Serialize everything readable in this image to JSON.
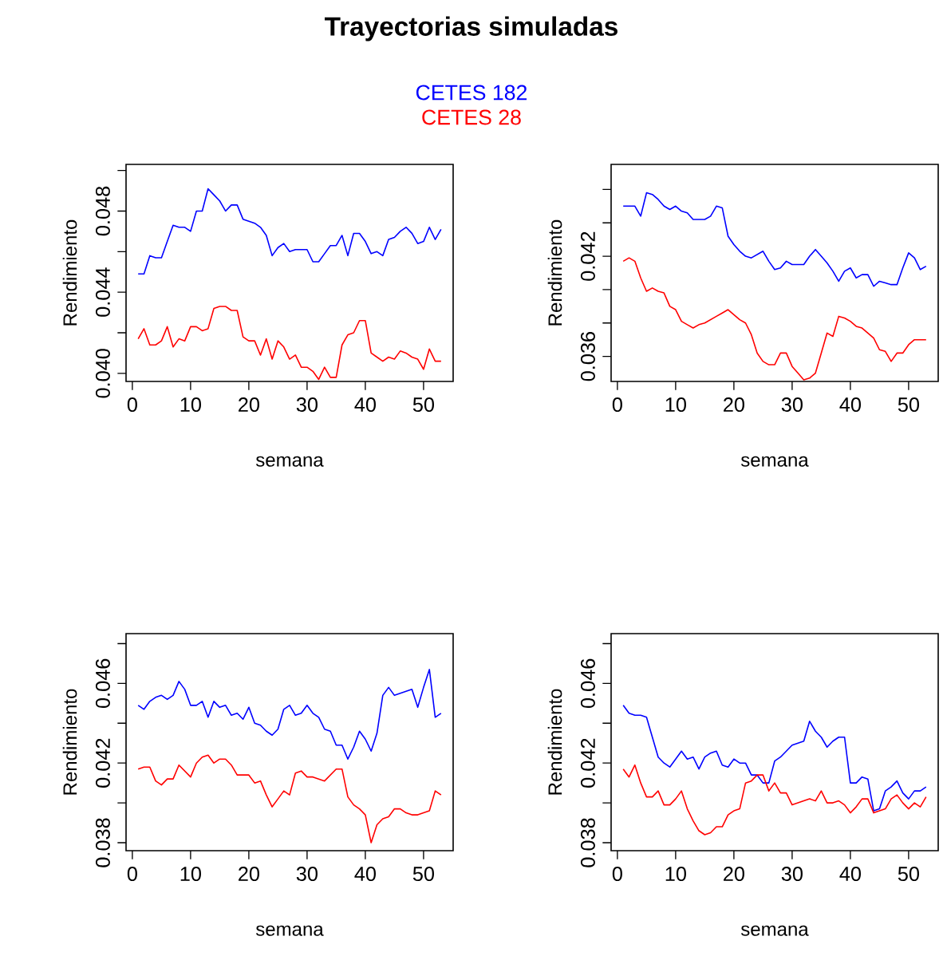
{
  "chart_data": [
    {
      "type": "line",
      "title": "Trayectorias simuladas",
      "legend": "top",
      "xlabel": "semana",
      "ylabel": "Rendimiento",
      "x": [
        1,
        2,
        3,
        4,
        5,
        6,
        7,
        8,
        9,
        10,
        11,
        12,
        13,
        14,
        15,
        16,
        17,
        18,
        19,
        20,
        21,
        22,
        23,
        24,
        25,
        26,
        27,
        28,
        29,
        30,
        31,
        32,
        33,
        34,
        35,
        36,
        37,
        38,
        39,
        40,
        41,
        42,
        43,
        44,
        45,
        46,
        47,
        48,
        49,
        50,
        51,
        52,
        53
      ],
      "xlim": [
        -1.08,
        55.08
      ],
      "xticks": [
        0,
        10,
        20,
        30,
        40,
        50
      ],
      "ylim": [
        0.0396,
        0.0503
      ],
      "yticks": [
        {
          "value": 0.04,
          "label": "0.040"
        },
        {
          "value": 0.042,
          "label": null
        },
        0.044,
        {
          "value": 0.046,
          "label": null
        },
        0.048,
        {
          "value": 0.05,
          "label": null
        }
      ],
      "series": [
        {
          "name": "CETES 182",
          "color": "#0000ff",
          "values": [
            0.0449,
            0.0449,
            0.0458,
            0.0457,
            0.0457,
            0.0465,
            0.0473,
            0.0472,
            0.0472,
            0.047,
            0.048,
            0.048,
            0.0491,
            0.0488,
            0.0485,
            0.048,
            0.0483,
            0.0483,
            0.0476,
            0.0475,
            0.0474,
            0.0472,
            0.0468,
            0.0458,
            0.0462,
            0.0464,
            0.046,
            0.0461,
            0.0461,
            0.0461,
            0.0455,
            0.0455,
            0.0459,
            0.0463,
            0.0463,
            0.0468,
            0.0458,
            0.0469,
            0.0469,
            0.0465,
            0.0459,
            0.046,
            0.0458,
            0.0466,
            0.0467,
            0.047,
            0.0472,
            0.0469,
            0.0464,
            0.0465,
            0.0472,
            0.0466,
            0.0471
          ]
        },
        {
          "name": "CETES 28",
          "color": "#ff0000",
          "values": [
            0.0417,
            0.0422,
            0.0414,
            0.0414,
            0.0416,
            0.0423,
            0.0413,
            0.0417,
            0.0416,
            0.0423,
            0.0423,
            0.0421,
            0.0422,
            0.0432,
            0.0433,
            0.0433,
            0.0431,
            0.0431,
            0.0418,
            0.0416,
            0.0416,
            0.0409,
            0.0417,
            0.0407,
            0.0416,
            0.0413,
            0.0407,
            0.0409,
            0.0403,
            0.0403,
            0.0401,
            0.0397,
            0.0403,
            0.0398,
            0.0398,
            0.0414,
            0.0419,
            0.042,
            0.0426,
            0.0426,
            0.041,
            0.0408,
            0.0406,
            0.0408,
            0.0407,
            0.0411,
            0.041,
            0.0408,
            0.0407,
            0.0402,
            0.0412,
            0.0406,
            0.0406
          ]
        }
      ]
    },
    {
      "type": "line",
      "xlabel": "semana",
      "ylabel": "Rendimiento",
      "x": [
        1,
        2,
        3,
        4,
        5,
        6,
        7,
        8,
        9,
        10,
        11,
        12,
        13,
        14,
        15,
        16,
        17,
        18,
        19,
        20,
        21,
        22,
        23,
        24,
        25,
        26,
        27,
        28,
        29,
        30,
        31,
        32,
        33,
        34,
        35,
        36,
        37,
        38,
        39,
        40,
        41,
        42,
        43,
        44,
        45,
        46,
        47,
        48,
        49,
        50,
        51,
        52,
        53
      ],
      "xlim": [
        -1.08,
        55.08
      ],
      "xticks": [
        0,
        10,
        20,
        30,
        40,
        50
      ],
      "ylim": [
        0.0345,
        0.0475
      ],
      "yticks": [
        0.036,
        {
          "value": 0.038,
          "label": null
        },
        {
          "value": 0.04,
          "label": null
        },
        0.042,
        {
          "value": 0.044,
          "label": null
        },
        {
          "value": 0.046,
          "label": null
        }
      ],
      "series": [
        {
          "color": "#0000ff",
          "values": [
            0.045,
            0.045,
            0.045,
            0.0444,
            0.0458,
            0.0457,
            0.0454,
            0.045,
            0.0448,
            0.045,
            0.0447,
            0.0446,
            0.0442,
            0.0442,
            0.0442,
            0.0444,
            0.045,
            0.0449,
            0.0432,
            0.0427,
            0.0423,
            0.042,
            0.0419,
            0.0421,
            0.0423,
            0.0417,
            0.0412,
            0.0413,
            0.0417,
            0.0415,
            0.0415,
            0.0415,
            0.042,
            0.0424,
            0.042,
            0.0416,
            0.0411,
            0.0405,
            0.0411,
            0.0413,
            0.0407,
            0.0409,
            0.0409,
            0.0402,
            0.0405,
            0.0404,
            0.0403,
            0.0403,
            0.0413,
            0.0422,
            0.0419,
            0.0412,
            0.0414
          ]
        },
        {
          "color": "#ff0000",
          "values": [
            0.0417,
            0.0419,
            0.0417,
            0.0407,
            0.0399,
            0.0401,
            0.0399,
            0.0398,
            0.039,
            0.0388,
            0.0381,
            0.0379,
            0.0377,
            0.0379,
            0.038,
            0.0382,
            0.0384,
            0.0386,
            0.0388,
            0.0385,
            0.0382,
            0.038,
            0.0373,
            0.0362,
            0.0357,
            0.0355,
            0.0355,
            0.0362,
            0.0362,
            0.0354,
            0.035,
            0.0346,
            0.0347,
            0.035,
            0.0362,
            0.0374,
            0.0372,
            0.0384,
            0.0383,
            0.0381,
            0.0378,
            0.0377,
            0.0374,
            0.0371,
            0.0364,
            0.0363,
            0.0357,
            0.0362,
            0.0362,
            0.0367,
            0.037,
            0.037,
            0.037
          ]
        }
      ]
    },
    {
      "type": "line",
      "xlabel": "semana",
      "ylabel": "Rendimiento",
      "x": [
        1,
        2,
        3,
        4,
        5,
        6,
        7,
        8,
        9,
        10,
        11,
        12,
        13,
        14,
        15,
        16,
        17,
        18,
        19,
        20,
        21,
        22,
        23,
        24,
        25,
        26,
        27,
        28,
        29,
        30,
        31,
        32,
        33,
        34,
        35,
        36,
        37,
        38,
        39,
        40,
        41,
        42,
        43,
        44,
        45,
        46,
        47,
        48,
        49,
        50,
        51,
        52,
        53
      ],
      "xlim": [
        -1.08,
        55.08
      ],
      "xticks": [
        0,
        10,
        20,
        30,
        40,
        50
      ],
      "ylim": [
        0.0376,
        0.0485
      ],
      "yticks": [
        0.038,
        {
          "value": 0.04,
          "label": null
        },
        0.042,
        {
          "value": 0.044,
          "label": null
        },
        0.046,
        {
          "value": 0.048,
          "label": null
        }
      ],
      "series": [
        {
          "color": "#0000ff",
          "values": [
            0.0449,
            0.0447,
            0.0451,
            0.0453,
            0.0454,
            0.0452,
            0.0454,
            0.0461,
            0.0457,
            0.0449,
            0.0449,
            0.0451,
            0.0443,
            0.0451,
            0.0448,
            0.0449,
            0.0444,
            0.0445,
            0.0442,
            0.0448,
            0.044,
            0.0439,
            0.0436,
            0.0434,
            0.0437,
            0.0447,
            0.0449,
            0.0444,
            0.0445,
            0.0449,
            0.0445,
            0.0443,
            0.0437,
            0.0436,
            0.0429,
            0.0429,
            0.0422,
            0.0428,
            0.0436,
            0.0432,
            0.0426,
            0.0435,
            0.0454,
            0.0458,
            0.0454,
            0.0455,
            0.0456,
            0.0457,
            0.0448,
            0.0458,
            0.0467,
            0.0443,
            0.0445
          ]
        },
        {
          "color": "#ff0000",
          "values": [
            0.0417,
            0.0418,
            0.0418,
            0.0411,
            0.0409,
            0.0412,
            0.0412,
            0.0419,
            0.0416,
            0.0413,
            0.042,
            0.0423,
            0.0424,
            0.042,
            0.0422,
            0.0422,
            0.0419,
            0.0414,
            0.0414,
            0.0414,
            0.041,
            0.0411,
            0.0404,
            0.0398,
            0.0402,
            0.0406,
            0.0404,
            0.0415,
            0.0416,
            0.0413,
            0.0413,
            0.0412,
            0.0411,
            0.0414,
            0.0417,
            0.0417,
            0.0403,
            0.0399,
            0.0397,
            0.0394,
            0.038,
            0.0389,
            0.0392,
            0.0393,
            0.0397,
            0.0397,
            0.0395,
            0.0394,
            0.0394,
            0.0395,
            0.0396,
            0.0406,
            0.0404
          ]
        }
      ]
    },
    {
      "type": "line",
      "xlabel": "semana",
      "ylabel": "Rendimiento",
      "x": [
        1,
        2,
        3,
        4,
        5,
        6,
        7,
        8,
        9,
        10,
        11,
        12,
        13,
        14,
        15,
        16,
        17,
        18,
        19,
        20,
        21,
        22,
        23,
        24,
        25,
        26,
        27,
        28,
        29,
        30,
        31,
        32,
        33,
        34,
        35,
        36,
        37,
        38,
        39,
        40,
        41,
        42,
        43,
        44,
        45,
        46,
        47,
        48,
        49,
        50,
        51,
        52,
        53
      ],
      "xlim": [
        -1.08,
        55.08
      ],
      "xticks": [
        0,
        10,
        20,
        30,
        40,
        50
      ],
      "ylim": [
        0.0376,
        0.0485
      ],
      "yticks": [
        0.038,
        {
          "value": 0.04,
          "label": null
        },
        0.042,
        {
          "value": 0.044,
          "label": null
        },
        0.046,
        {
          "value": 0.048,
          "label": null
        }
      ],
      "series": [
        {
          "color": "#0000ff",
          "values": [
            0.0449,
            0.0445,
            0.0444,
            0.0444,
            0.0443,
            0.0433,
            0.0423,
            0.042,
            0.0418,
            0.0422,
            0.0426,
            0.0422,
            0.0423,
            0.0417,
            0.0423,
            0.0425,
            0.0426,
            0.0419,
            0.0418,
            0.0422,
            0.042,
            0.042,
            0.0414,
            0.0414,
            0.041,
            0.041,
            0.0421,
            0.0423,
            0.0426,
            0.0429,
            0.043,
            0.0431,
            0.0441,
            0.0436,
            0.0433,
            0.0428,
            0.0431,
            0.0433,
            0.0433,
            0.041,
            0.041,
            0.0413,
            0.0412,
            0.0396,
            0.0397,
            0.0406,
            0.0408,
            0.0411,
            0.0405,
            0.0402,
            0.0406,
            0.0406,
            0.0408
          ]
        },
        {
          "color": "#ff0000",
          "values": [
            0.0417,
            0.0413,
            0.0419,
            0.041,
            0.0403,
            0.0403,
            0.0406,
            0.0399,
            0.0399,
            0.0402,
            0.0406,
            0.0397,
            0.0391,
            0.0386,
            0.0384,
            0.0385,
            0.0388,
            0.0388,
            0.0394,
            0.0396,
            0.0397,
            0.041,
            0.0411,
            0.0414,
            0.0414,
            0.0406,
            0.041,
            0.0405,
            0.0405,
            0.0399,
            0.04,
            0.0401,
            0.0402,
            0.0401,
            0.0406,
            0.04,
            0.04,
            0.0401,
            0.0399,
            0.0395,
            0.0398,
            0.0402,
            0.0402,
            0.0395,
            0.0396,
            0.0397,
            0.0402,
            0.0404,
            0.04,
            0.0397,
            0.04,
            0.0398,
            0.0403
          ]
        }
      ]
    }
  ]
}
